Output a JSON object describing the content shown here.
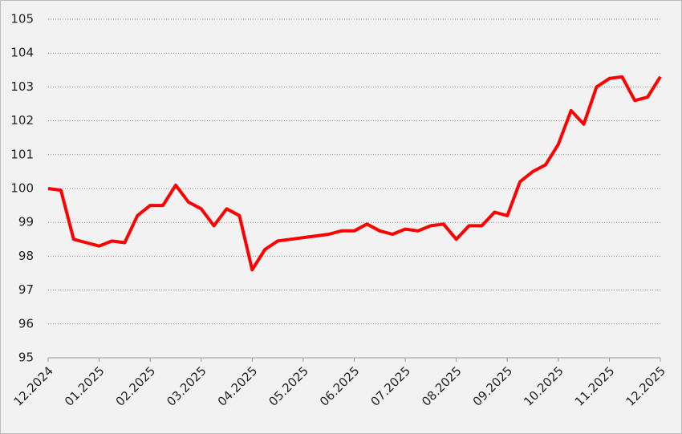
{
  "chart_data": {
    "type": "line",
    "categories": [
      "12.2024",
      null,
      null,
      null,
      "01.2025",
      null,
      null,
      null,
      "02.2025",
      null,
      null,
      null,
      "03.2025",
      null,
      null,
      null,
      "04.2025",
      null,
      null,
      null,
      "05.2025",
      null,
      null,
      null,
      "06.2025",
      null,
      null,
      null,
      "07.2025",
      null,
      null,
      null,
      "08.2025",
      null,
      null,
      null,
      "09.2025",
      null,
      null,
      null,
      "10.2025",
      null,
      null,
      null,
      "11.2025",
      null,
      null,
      null,
      "12.2025"
    ],
    "values": [
      100.0,
      99.95,
      98.5,
      98.4,
      98.3,
      98.45,
      98.4,
      99.2,
      99.5,
      99.5,
      100.1,
      99.6,
      99.4,
      98.9,
      99.4,
      99.2,
      97.6,
      98.2,
      98.45,
      98.5,
      98.55,
      98.6,
      98.65,
      98.75,
      98.75,
      98.95,
      98.75,
      98.65,
      98.8,
      98.75,
      98.9,
      98.95,
      98.5,
      98.9,
      98.9,
      99.3,
      99.2,
      100.2,
      100.5,
      100.7,
      101.3,
      102.3,
      101.9,
      103.0,
      103.25,
      103.3,
      102.6,
      102.7,
      103.3
    ],
    "color": "#ff0000",
    "ylim": [
      95,
      105
    ],
    "yticks": [
      95,
      96,
      97,
      98,
      99,
      100,
      101,
      102,
      103,
      104,
      105
    ],
    "grid": true
  }
}
